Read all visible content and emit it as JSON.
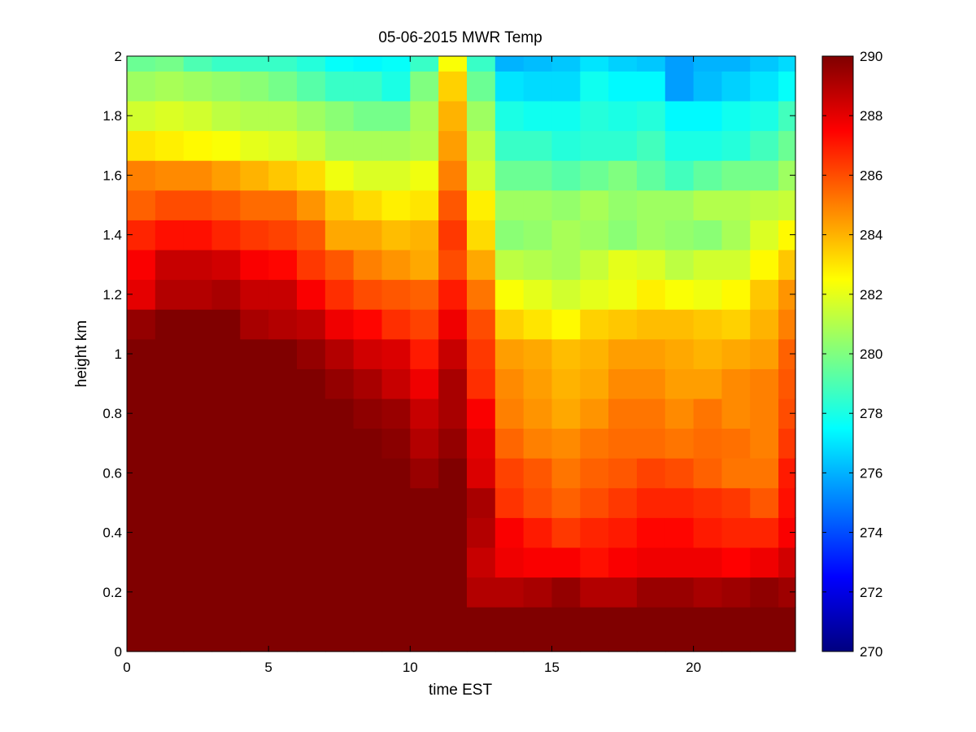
{
  "chart_data": {
    "type": "heatmap",
    "title": "05-06-2015 MWR Temp",
    "xlabel": "time EST",
    "ylabel": "height km",
    "xlim": [
      0,
      23.6
    ],
    "ylim": [
      0,
      2
    ],
    "x_ticks": [
      0,
      5,
      10,
      15,
      20
    ],
    "x_tick_labels": [
      "0",
      "5",
      "10",
      "15",
      "20"
    ],
    "y_ticks": [
      0,
      0.2,
      0.4,
      0.6,
      0.8,
      1,
      1.2,
      1.4,
      1.6,
      1.8,
      2
    ],
    "y_tick_labels": [
      "0",
      "0.2",
      "0.4",
      "0.6",
      "0.8",
      "1",
      "1.2",
      "1.4",
      "1.6",
      "1.8",
      "2"
    ],
    "colorbar": {
      "colormap": "jet",
      "range": [
        270,
        290
      ],
      "ticks": [
        270,
        272,
        274,
        276,
        278,
        280,
        282,
        284,
        286,
        288,
        290
      ],
      "tick_labels": [
        "270",
        "272",
        "274",
        "276",
        "278",
        "280",
        "282",
        "284",
        "286",
        "288",
        "290"
      ]
    },
    "x_edges": [
      0,
      1,
      2,
      3,
      4,
      5,
      6,
      7,
      8,
      9,
      10,
      11,
      12,
      13,
      14,
      15,
      16,
      17,
      18,
      19,
      20,
      21,
      22,
      23,
      23.6
    ],
    "y_edges": [
      0,
      0.15,
      0.25,
      0.35,
      0.45,
      0.55,
      0.65,
      0.75,
      0.85,
      0.95,
      1.05,
      1.15,
      1.25,
      1.35,
      1.45,
      1.55,
      1.65,
      1.75,
      1.85,
      1.95,
      2.0
    ],
    "values": [
      [
        290.0,
        290.0,
        290.0,
        290.0,
        290.0,
        290.0,
        290.0,
        290.0,
        290.0,
        290.0,
        290.0,
        290.0,
        290.0,
        290.0,
        290.0,
        290.0,
        290.0,
        290.0,
        290.0,
        290.0,
        290.0,
        290.0,
        290.0,
        290.0
      ],
      [
        290.0,
        290.0,
        290.0,
        290.0,
        290.0,
        290.0,
        290.0,
        290.0,
        290.0,
        290.0,
        290.0,
        290.0,
        289.0,
        289.0,
        289.2,
        289.6,
        289.0,
        289.0,
        289.5,
        289.5,
        289.2,
        289.4,
        289.7,
        289.4
      ],
      [
        290.0,
        290.0,
        290.0,
        290.0,
        290.0,
        290.0,
        290.0,
        290.0,
        290.0,
        290.0,
        290.0,
        290.0,
        288.6,
        287.8,
        287.6,
        287.6,
        287.2,
        287.6,
        287.8,
        287.8,
        287.8,
        287.5,
        287.8,
        288.4
      ],
      [
        290.0,
        290.0,
        290.0,
        290.0,
        290.0,
        290.0,
        290.0,
        290.0,
        290.0,
        290.0,
        290.0,
        290.0,
        289.0,
        287.6,
        287.0,
        286.4,
        286.8,
        287.0,
        287.4,
        287.4,
        287.0,
        286.8,
        286.8,
        287.6
      ],
      [
        290.0,
        290.0,
        290.0,
        290.0,
        290.0,
        290.0,
        290.0,
        290.0,
        290.0,
        290.0,
        290.0,
        290.0,
        289.2,
        286.5,
        286.0,
        285.6,
        286.0,
        286.4,
        286.8,
        286.8,
        286.6,
        286.4,
        285.8,
        287.2
      ],
      [
        290.0,
        290.0,
        290.0,
        290.0,
        290.0,
        290.0,
        290.0,
        290.0,
        290.0,
        290.0,
        289.5,
        290.0,
        288.2,
        286.2,
        285.8,
        285.2,
        285.6,
        285.8,
        286.2,
        286.0,
        285.6,
        285.2,
        285.2,
        287.0
      ],
      [
        290.0,
        290.0,
        290.0,
        290.0,
        290.0,
        290.0,
        290.0,
        290.0,
        290.0,
        289.8,
        289.0,
        289.6,
        288.0,
        285.5,
        285.0,
        284.8,
        285.2,
        285.4,
        285.4,
        285.2,
        285.4,
        285.3,
        285.0,
        286.4
      ],
      [
        290.0,
        290.0,
        290.0,
        290.0,
        290.0,
        290.0,
        290.0,
        290.0,
        289.7,
        289.5,
        288.6,
        289.2,
        287.6,
        285.0,
        284.6,
        284.2,
        284.6,
        285.2,
        285.2,
        284.8,
        285.2,
        284.8,
        285.0,
        286.0
      ],
      [
        290.0,
        290.0,
        290.0,
        290.0,
        290.0,
        290.0,
        290.0,
        289.6,
        289.2,
        288.6,
        287.8,
        289.2,
        286.6,
        284.8,
        284.4,
        284.0,
        284.2,
        284.8,
        284.8,
        284.4,
        284.4,
        284.8,
        285.0,
        285.8
      ],
      [
        290.0,
        290.0,
        290.0,
        290.0,
        290.0,
        290.0,
        289.6,
        289.0,
        288.4,
        288.2,
        287.0,
        288.6,
        286.4,
        284.4,
        284.2,
        283.8,
        284.0,
        284.4,
        284.4,
        284.2,
        284.0,
        284.2,
        284.4,
        285.6
      ],
      [
        289.6,
        290.0,
        290.0,
        290.0,
        289.2,
        289.0,
        288.8,
        287.8,
        287.4,
        286.6,
        286.2,
        287.8,
        286.0,
        283.4,
        283.0,
        282.6,
        283.4,
        283.6,
        283.8,
        283.8,
        283.6,
        283.4,
        284.0,
        285.0
      ],
      [
        288.0,
        289.0,
        289.0,
        289.2,
        288.6,
        288.6,
        287.6,
        286.6,
        286.0,
        285.8,
        285.6,
        287.0,
        285.2,
        282.4,
        282.0,
        281.6,
        282.0,
        282.2,
        282.8,
        282.4,
        282.2,
        282.6,
        283.6,
        284.6
      ],
      [
        287.6,
        288.6,
        288.6,
        288.4,
        287.6,
        287.4,
        286.4,
        285.8,
        285.0,
        284.6,
        284.2,
        286.0,
        284.2,
        281.2,
        281.0,
        280.8,
        281.4,
        282.0,
        281.8,
        281.2,
        281.6,
        281.6,
        282.6,
        283.6
      ],
      [
        286.8,
        287.2,
        287.2,
        286.8,
        286.4,
        286.2,
        285.8,
        284.2,
        284.2,
        283.8,
        284.0,
        286.4,
        283.2,
        280.2,
        280.4,
        280.8,
        280.6,
        280.2,
        280.6,
        280.4,
        280.2,
        280.8,
        281.8,
        282.6
      ],
      [
        285.6,
        286.0,
        286.0,
        285.8,
        285.4,
        285.4,
        284.6,
        283.6,
        283.2,
        282.8,
        283.0,
        285.8,
        282.8,
        280.6,
        280.6,
        280.4,
        280.8,
        280.4,
        280.6,
        280.6,
        281.0,
        281.0,
        281.2,
        281.4
      ],
      [
        285.0,
        284.8,
        284.8,
        284.4,
        284.0,
        283.6,
        283.2,
        282.2,
        281.8,
        281.8,
        282.2,
        285.0,
        281.6,
        279.6,
        279.6,
        279.2,
        279.6,
        280.0,
        279.4,
        278.8,
        279.4,
        279.8,
        279.8,
        280.6
      ],
      [
        283.0,
        282.8,
        282.6,
        282.4,
        282.0,
        281.8,
        281.4,
        280.8,
        280.8,
        280.8,
        281.0,
        284.4,
        281.2,
        278.6,
        278.6,
        278.2,
        278.4,
        278.4,
        278.8,
        278.0,
        278.0,
        278.2,
        278.8,
        279.6
      ],
      [
        281.6,
        281.8,
        281.6,
        281.2,
        281.0,
        281.0,
        280.6,
        280.2,
        279.8,
        279.8,
        280.8,
        284.0,
        280.6,
        278.0,
        277.8,
        277.8,
        278.2,
        278.0,
        278.2,
        277.4,
        277.4,
        277.8,
        278.0,
        278.8
      ],
      [
        280.6,
        280.8,
        280.6,
        280.4,
        280.2,
        279.8,
        279.2,
        278.6,
        278.6,
        278.0,
        280.0,
        283.4,
        279.6,
        277.0,
        276.8,
        276.8,
        277.8,
        277.4,
        277.4,
        275.6,
        276.2,
        276.6,
        277.0,
        277.6
      ],
      [
        279.6,
        279.8,
        279.0,
        278.6,
        278.6,
        278.6,
        278.2,
        277.6,
        277.4,
        277.6,
        278.6,
        282.4,
        278.6,
        276.0,
        276.2,
        276.4,
        277.0,
        276.6,
        276.4,
        275.6,
        276.0,
        276.0,
        276.4,
        276.8
      ]
    ]
  }
}
